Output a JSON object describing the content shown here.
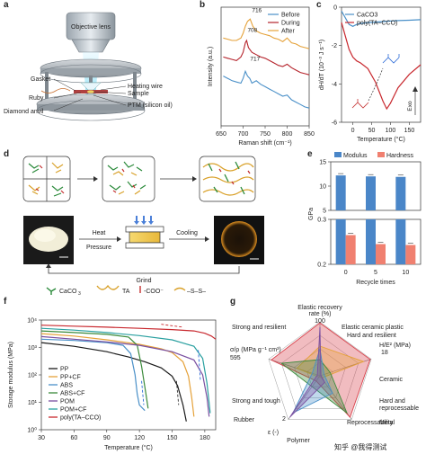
{
  "panels": {
    "a": "a",
    "b": "b",
    "c": "c",
    "d": "d",
    "e": "e",
    "f": "f",
    "g": "g"
  },
  "panel_a": {
    "labels": [
      "Objective lens",
      "Gasket",
      "Heating wire",
      "Sample",
      "Ruby",
      "PTM (silicon oil)",
      "Diamond anvil"
    ]
  },
  "panel_d": {
    "labels": [
      "Heat",
      "Pressure",
      "Cooling",
      "Grind"
    ],
    "legend": [
      "CaCO",
      "3",
      "TA",
      "-COO⁻",
      "–S–S–"
    ]
  },
  "panel_g": {
    "labels": [
      "Elastic recovery",
      "rate (%)",
      "100",
      "Elastic ceramic plastic",
      "Hard and resilient",
      "H/E² (MPa)",
      "18",
      "Strong and resilient",
      "σ/ρ (MPa g⁻¹ cm³)",
      "595",
      "Ceramic",
      "Hard and",
      "reprocessable",
      "Metal",
      "Strong and tough",
      "Rubber",
      "2",
      "ε (-)",
      "Polymer",
      "Reprocessability"
    ]
  },
  "watermark": "知乎 @我得测试",
  "chart_data": [
    {
      "id": "b",
      "type": "line",
      "xlabel": "Raman shift (cm⁻¹)",
      "ylabel": "Intensity (a.u.)",
      "xlim": [
        650,
        850
      ],
      "xticks": [
        650,
        700,
        750,
        800,
        850
      ],
      "annotations": [
        "716",
        "708",
        "717"
      ],
      "series": [
        {
          "name": "Before",
          "color": "#4a90c8",
          "x": [
            655,
            665,
            675,
            685,
            695,
            700,
            705,
            710,
            715,
            720,
            730,
            740,
            750,
            760,
            770,
            780,
            790,
            800,
            810,
            820,
            830,
            840,
            850
          ],
          "y": [
            0.42,
            0.4,
            0.38,
            0.37,
            0.36,
            0.4,
            0.46,
            0.42,
            0.4,
            0.36,
            0.38,
            0.35,
            0.33,
            0.31,
            0.29,
            0.27,
            0.25,
            0.26,
            0.22,
            0.2,
            0.18,
            0.16,
            0.15
          ]
        },
        {
          "name": "During",
          "color": "#b5232b",
          "x": [
            655,
            665,
            675,
            685,
            695,
            700,
            705,
            708,
            712,
            720,
            730,
            740,
            750,
            760,
            770,
            780,
            790,
            800,
            810,
            820,
            830,
            840,
            850
          ],
          "y": [
            0.58,
            0.57,
            0.56,
            0.55,
            0.58,
            0.62,
            0.7,
            0.72,
            0.66,
            0.62,
            0.6,
            0.58,
            0.57,
            0.55,
            0.53,
            0.51,
            0.5,
            0.52,
            0.49,
            0.47,
            0.45,
            0.44,
            0.43
          ]
        },
        {
          "name": "After",
          "color": "#e5a23a",
          "x": [
            655,
            665,
            675,
            685,
            695,
            700,
            705,
            710,
            716,
            722,
            730,
            740,
            750,
            760,
            770,
            780,
            790,
            800,
            810,
            820,
            830,
            840,
            850
          ],
          "y": [
            0.74,
            0.73,
            0.72,
            0.72,
            0.74,
            0.78,
            0.84,
            0.88,
            0.9,
            0.84,
            0.8,
            0.78,
            0.77,
            0.76,
            0.74,
            0.73,
            0.71,
            0.74,
            0.7,
            0.69,
            0.67,
            0.66,
            0.65
          ]
        }
      ]
    },
    {
      "id": "c",
      "type": "line",
      "xlabel": "Temperature (°C)",
      "ylabel": "dH/dT (10⁻³ J s⁻¹)",
      "xlim": [
        -30,
        180
      ],
      "ylim": [
        -6,
        0
      ],
      "xticks": [
        0,
        50,
        100,
        150
      ],
      "yticks": [
        0,
        -2,
        -4,
        -6
      ],
      "annotations": [
        "Exo"
      ],
      "series": [
        {
          "name": "CaCO3",
          "color": "#4a90c8",
          "x": [
            -30,
            -10,
            0,
            10,
            20,
            40,
            60,
            80,
            100,
            120,
            150,
            180
          ],
          "y": [
            -0.2,
            -0.9,
            -1.0,
            -0.9,
            -0.85,
            -0.8,
            -0.78,
            -0.75,
            -0.72,
            -0.7,
            -0.68,
            -0.65
          ]
        },
        {
          "name": "poly(TA–CCO)",
          "color": "#c8282e",
          "x": [
            -30,
            -10,
            0,
            10,
            20,
            40,
            60,
            70,
            80,
            90,
            100,
            120,
            150,
            180
          ],
          "y": [
            -0.8,
            -2.2,
            -2.6,
            -2.8,
            -2.9,
            -3.2,
            -3.9,
            -4.4,
            -4.9,
            -5.3,
            -5.0,
            -4.2,
            -3.5,
            -3.0
          ]
        }
      ]
    },
    {
      "id": "e",
      "type": "bar",
      "xlabel": "Recycle times",
      "ylabel": "GPa",
      "categories": [
        "0",
        "5",
        "10"
      ],
      "ylim_top": [
        5,
        15
      ],
      "ylim_bottom": [
        0.2,
        0.3
      ],
      "yticks_top": [
        5,
        10,
        15
      ],
      "yticks_bottom": [
        0.2,
        0.3
      ],
      "series": [
        {
          "name": "Modulus",
          "color": "#4a86c8",
          "values": [
            12.2,
            12.0,
            11.9
          ]
        },
        {
          "name": "Hardness",
          "color": "#f08070",
          "values": [
            0.265,
            0.245,
            0.243
          ]
        }
      ]
    },
    {
      "id": "f",
      "type": "line",
      "xlabel": "Temperature (°C)",
      "ylabel": "Storage modulus (MPa)",
      "xlim": [
        30,
        190
      ],
      "ylog": true,
      "ylim": [
        1,
        10000
      ],
      "xticks": [
        30,
        60,
        90,
        120,
        150,
        180
      ],
      "yticks_labels": [
        "10⁰",
        "10¹",
        "10²",
        "10³",
        "10⁴"
      ],
      "series": [
        {
          "name": "PP",
          "color": "#1a1a1a",
          "x": [
            30,
            60,
            90,
            110,
            125,
            140,
            150,
            155,
            160,
            163
          ],
          "y": [
            1500,
            1100,
            700,
            450,
            300,
            180,
            90,
            40,
            8,
            2
          ]
        },
        {
          "name": "PP+CF",
          "color": "#e5a23a",
          "x": [
            30,
            60,
            90,
            120,
            140,
            150,
            160,
            165,
            168,
            170
          ],
          "y": [
            3200,
            2600,
            1900,
            1300,
            900,
            650,
            300,
            90,
            15,
            3
          ]
        },
        {
          "name": "ABS",
          "color": "#4a90c8",
          "x": [
            30,
            60,
            90,
            105,
            112,
            116,
            118,
            120,
            125
          ],
          "y": [
            2000,
            1800,
            1500,
            1200,
            600,
            100,
            20,
            8,
            5
          ]
        },
        {
          "name": "ABS+CF",
          "color": "#3a8a3a",
          "x": [
            30,
            60,
            90,
            110,
            118,
            122,
            126,
            128
          ],
          "y": [
            4000,
            3500,
            3000,
            2400,
            1200,
            200,
            20,
            6
          ]
        },
        {
          "name": "POM",
          "color": "#7a4fa0",
          "x": [
            30,
            60,
            90,
            120,
            150,
            170,
            178,
            182,
            184
          ],
          "y": [
            2500,
            2000,
            1600,
            1200,
            700,
            350,
            100,
            15,
            3
          ]
        },
        {
          "name": "POM+CF",
          "color": "#2aa0a0",
          "x": [
            30,
            60,
            90,
            120,
            150,
            170,
            178,
            182,
            185
          ],
          "y": [
            5000,
            4300,
            3500,
            2700,
            1900,
            1100,
            400,
            50,
            4
          ]
        },
        {
          "name": "poly(TA–CCO)",
          "color": "#c8282e",
          "x": [
            30,
            60,
            90,
            120,
            150,
            170,
            180,
            186,
            190
          ],
          "y": [
            6500,
            6000,
            5500,
            5000,
            4500,
            4000,
            3300,
            2600,
            2000
          ]
        }
      ]
    },
    {
      "id": "g",
      "type": "radar",
      "axes": [
        "Elastic recovery rate",
        "H/E²",
        "Reprocessability",
        "ε",
        "σ/ρ"
      ],
      "series": [
        {
          "name": "poly(TA–CCO)",
          "color": "#d8404a",
          "values": [
            0.98,
            0.98,
            0.95,
            0.12,
            0.95
          ]
        },
        {
          "name": "Ceramic",
          "color": "#e5a23a",
          "values": [
            0.55,
            0.85,
            0.05,
            0.03,
            0.45
          ]
        },
        {
          "name": "Metal",
          "color": "#3a8a3a",
          "values": [
            0.3,
            0.2,
            0.85,
            0.25,
            0.75
          ]
        },
        {
          "name": "Polymer",
          "color": "#4a90c8",
          "values": [
            0.5,
            0.08,
            0.4,
            0.85,
            0.15
          ]
        },
        {
          "name": "Rubber",
          "color": "#7a4fa0",
          "values": [
            0.9,
            0.02,
            0.15,
            0.95,
            0.05
          ]
        }
      ]
    }
  ]
}
